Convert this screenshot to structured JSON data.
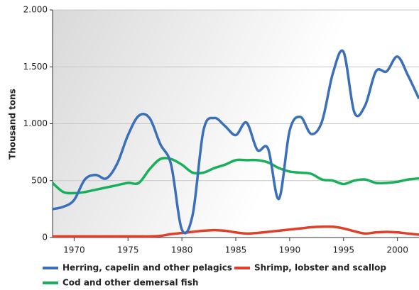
{
  "chart_data": {
    "type": "line",
    "y_label": "Thousand tons",
    "x": [
      1968,
      1969,
      1970,
      1971,
      1972,
      1973,
      1974,
      1975,
      1976,
      1977,
      1978,
      1979,
      1980,
      1981,
      1982,
      1983,
      1984,
      1985,
      1986,
      1987,
      1988,
      1989,
      1990,
      1991,
      1992,
      1993,
      1994,
      1995,
      1996,
      1997,
      1998,
      1999,
      2000,
      2001,
      2002
    ],
    "series": [
      {
        "name": "Herring, capelin and other pelagics",
        "color": "#3a6fba",
        "values": [
          250,
          270,
          330,
          510,
          550,
          520,
          650,
          900,
          1070,
          1050,
          820,
          640,
          70,
          200,
          940,
          1050,
          980,
          900,
          1010,
          770,
          780,
          340,
          940,
          1060,
          910,
          1020,
          1440,
          1630,
          1100,
          1160,
          1460,
          1460,
          1590,
          1420,
          1220
        ]
      },
      {
        "name": "Shrimp, lobster and scallop",
        "color": "#e0402a",
        "values": [
          10,
          10,
          10,
          10,
          10,
          10,
          10,
          10,
          10,
          10,
          15,
          30,
          40,
          50,
          60,
          65,
          60,
          45,
          35,
          40,
          50,
          60,
          70,
          80,
          90,
          95,
          95,
          80,
          55,
          35,
          45,
          50,
          45,
          35,
          25
        ]
      },
      {
        "name": "Cod and other demersal fish",
        "color": "#18b05a",
        "values": [
          480,
          400,
          390,
          400,
          420,
          440,
          460,
          480,
          480,
          600,
          690,
          690,
          640,
          570,
          570,
          610,
          640,
          680,
          680,
          680,
          660,
          610,
          580,
          570,
          560,
          510,
          500,
          470,
          500,
          510,
          480,
          480,
          490,
          510,
          520
        ]
      }
    ],
    "xlim": [
      1968,
      2002
    ],
    "xticks": [
      1970,
      1975,
      1980,
      1985,
      1990,
      1995,
      2000
    ],
    "ylim": [
      0,
      2000
    ],
    "yticks": [
      0,
      500,
      {
        "value": 1000,
        "label": "1.000"
      },
      {
        "value": 1500,
        "label": "1.500"
      },
      {
        "value": 2000,
        "label": "2.000"
      }
    ],
    "grid": true
  }
}
